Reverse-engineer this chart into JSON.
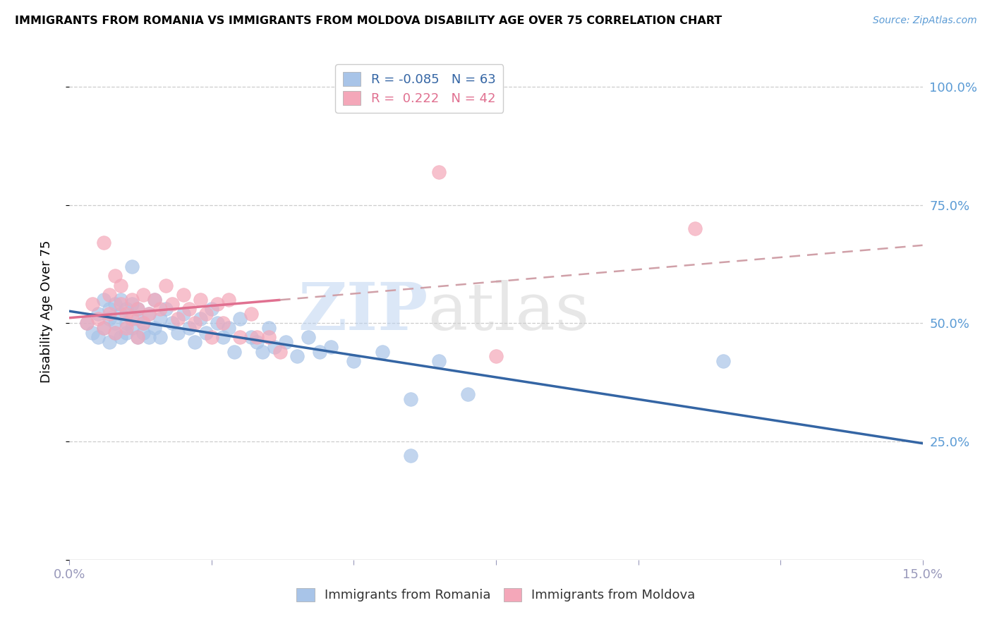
{
  "title": "IMMIGRANTS FROM ROMANIA VS IMMIGRANTS FROM MOLDOVA DISABILITY AGE OVER 75 CORRELATION CHART",
  "source": "Source: ZipAtlas.com",
  "ylabel_label": "Disability Age Over 75",
  "xmin": 0.0,
  "xmax": 0.15,
  "ymin": 0.0,
  "ymax": 1.05,
  "romania_R": -0.085,
  "romania_N": 63,
  "moldova_R": 0.222,
  "moldova_N": 42,
  "romania_color": "#a8c4e8",
  "moldova_color": "#f4a7b9",
  "romania_line_color": "#3465a4",
  "moldova_line_color": "#e07090",
  "moldova_dash_color": "#e8a0b0",
  "watermark": "ZIPatlas",
  "romania_scatter_x": [
    0.003,
    0.004,
    0.005,
    0.005,
    0.006,
    0.006,
    0.007,
    0.007,
    0.007,
    0.008,
    0.008,
    0.008,
    0.009,
    0.009,
    0.009,
    0.01,
    0.01,
    0.01,
    0.011,
    0.011,
    0.011,
    0.012,
    0.012,
    0.012,
    0.013,
    0.013,
    0.014,
    0.014,
    0.015,
    0.015,
    0.016,
    0.016,
    0.017,
    0.018,
    0.019,
    0.02,
    0.021,
    0.022,
    0.023,
    0.024,
    0.025,
    0.026,
    0.027,
    0.028,
    0.029,
    0.03,
    0.032,
    0.033,
    0.034,
    0.035,
    0.036,
    0.038,
    0.04,
    0.042,
    0.044,
    0.046,
    0.05,
    0.055,
    0.06,
    0.065,
    0.07,
    0.115,
    0.06
  ],
  "romania_scatter_y": [
    0.5,
    0.48,
    0.52,
    0.47,
    0.55,
    0.49,
    0.53,
    0.51,
    0.46,
    0.54,
    0.48,
    0.5,
    0.52,
    0.47,
    0.55,
    0.5,
    0.48,
    0.53,
    0.62,
    0.49,
    0.54,
    0.51,
    0.47,
    0.53,
    0.5,
    0.48,
    0.52,
    0.47,
    0.55,
    0.49,
    0.51,
    0.47,
    0.53,
    0.5,
    0.48,
    0.52,
    0.49,
    0.46,
    0.51,
    0.48,
    0.53,
    0.5,
    0.47,
    0.49,
    0.44,
    0.51,
    0.47,
    0.46,
    0.44,
    0.49,
    0.45,
    0.46,
    0.43,
    0.47,
    0.44,
    0.45,
    0.42,
    0.44,
    0.34,
    0.42,
    0.35,
    0.42,
    0.22
  ],
  "moldova_scatter_x": [
    0.003,
    0.004,
    0.005,
    0.006,
    0.006,
    0.007,
    0.007,
    0.008,
    0.008,
    0.009,
    0.009,
    0.01,
    0.01,
    0.011,
    0.011,
    0.012,
    0.012,
    0.013,
    0.013,
    0.014,
    0.015,
    0.016,
    0.017,
    0.018,
    0.019,
    0.02,
    0.021,
    0.022,
    0.023,
    0.024,
    0.025,
    0.026,
    0.027,
    0.028,
    0.03,
    0.032,
    0.033,
    0.035,
    0.037,
    0.075,
    0.065,
    0.11
  ],
  "moldova_scatter_y": [
    0.5,
    0.54,
    0.51,
    0.67,
    0.49,
    0.56,
    0.52,
    0.6,
    0.48,
    0.58,
    0.54,
    0.52,
    0.49,
    0.55,
    0.51,
    0.53,
    0.47,
    0.56,
    0.5,
    0.52,
    0.55,
    0.53,
    0.58,
    0.54,
    0.51,
    0.56,
    0.53,
    0.5,
    0.55,
    0.52,
    0.47,
    0.54,
    0.5,
    0.55,
    0.47,
    0.52,
    0.47,
    0.47,
    0.44,
    0.43,
    0.82,
    0.7
  ]
}
